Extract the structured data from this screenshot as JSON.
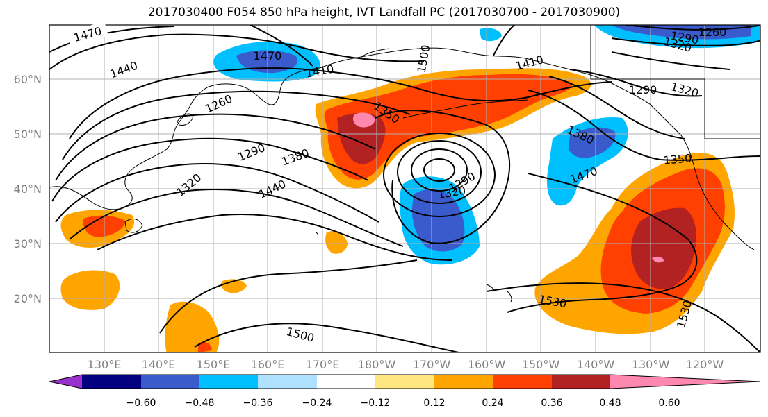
{
  "title": "2017030400 F054 850 hPa height, IVT Landfall PC (2017030700 - 2017030900)",
  "lat_labels": [
    "60°N",
    "50°N",
    "40°N",
    "30°N",
    "20°N"
  ],
  "lon_labels": [
    "130°E",
    "140°E",
    "150°E",
    "160°E",
    "170°E",
    "180°W",
    "170°W",
    "160°W",
    "150°W",
    "140°W",
    "130°W",
    "120°W"
  ],
  "contour_labels": [
    "1470",
    "1440",
    "1470",
    "1410",
    "1260",
    "1290",
    "1320",
    "1380",
    "1440",
    "1350",
    "1500",
    "1410",
    "1290",
    "1320",
    "1260",
    "1290",
    "1320",
    "1380",
    "1350",
    "1470",
    "1290",
    "1320",
    "1530",
    "1530",
    "1500"
  ],
  "colorbar": {
    "colors": [
      "#9932cc",
      "#000080",
      "#3a5bcc",
      "#00bfff",
      "#b0e0ff",
      "#ffffff",
      "#ffe680",
      "#ffa500",
      "#ff4000",
      "#b22222",
      "#ff88b0"
    ],
    "tick_labels": [
      "−0.60",
      "−0.48",
      "−0.36",
      "−0.24",
      "−0.12",
      "0.12",
      "0.24",
      "0.36",
      "0.48",
      "0.60"
    ]
  }
}
